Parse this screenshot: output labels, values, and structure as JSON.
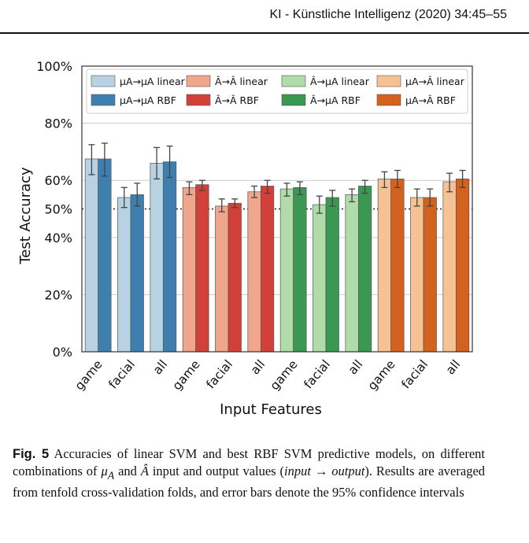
{
  "header": {
    "journal": "KI - Künstliche Intelligenz (2020) 34:45–55"
  },
  "caption": {
    "label": "Fig. 5",
    "part1": "Accuracies of linear SVM and best RBF SVM predictive models, on different combinations of",
    "sym_mu": "μ",
    "sym_mu_sub": "A",
    "part2": "and",
    "sym_a": "Â",
    "part3": "input and output values (",
    "input_word": "input",
    "arrow": "→",
    "output_word": "output",
    "part4": "). Results are averaged from tenfold cross-validation folds, and error bars denote the 95% confidence intervals"
  },
  "chart_data": {
    "type": "bar",
    "xlabel": "Input Features",
    "ylabel": "Test Accuracy",
    "ylim": [
      0,
      100
    ],
    "yticks": [
      0,
      20,
      40,
      50,
      60,
      80,
      100
    ],
    "ytick_labels": [
      "0%",
      "20%",
      "40%",
      "50%",
      "60%",
      "80%",
      "100%"
    ],
    "categories": [
      "game",
      "facial",
      "all",
      "game",
      "facial",
      "all",
      "game",
      "facial",
      "all",
      "game",
      "facial",
      "all"
    ],
    "reference_line": 50,
    "legend_position": "top",
    "groups": [
      {
        "series": [
          {
            "name": "μA→μA linear",
            "color": "#b6d2e3",
            "values": [
              67.5,
              54.0,
              66.0
            ],
            "err_low": [
              62.0,
              50.5,
              60.5
            ],
            "err_high": [
              72.5,
              57.5,
              71.5
            ]
          },
          {
            "name": "μA→μA RBF",
            "color": "#3f7fb0",
            "values": [
              67.5,
              55.0,
              66.5
            ],
            "err_low": [
              61.5,
              51.0,
              61.0
            ],
            "err_high": [
              73.0,
              59.0,
              72.0
            ]
          }
        ]
      },
      {
        "series": [
          {
            "name": "Â→Â linear",
            "color": "#f0a58d",
            "values": [
              57.5,
              51.0,
              56.0
            ],
            "err_low": [
              55.0,
              49.0,
              54.0
            ],
            "err_high": [
              59.5,
              53.5,
              58.0
            ]
          },
          {
            "name": "Â→Â RBF",
            "color": "#d2403a",
            "values": [
              58.5,
              52.0,
              58.0
            ],
            "err_low": [
              56.5,
              50.5,
              55.5
            ],
            "err_high": [
              60.0,
              53.5,
              60.0
            ]
          }
        ]
      },
      {
        "series": [
          {
            "name": "Â→μA linear",
            "color": "#b0dca9",
            "values": [
              57.0,
              51.5,
              55.0
            ],
            "err_low": [
              54.5,
              48.5,
              52.5
            ],
            "err_high": [
              59.0,
              54.5,
              57.0
            ]
          },
          {
            "name": "Â→μA RBF",
            "color": "#3a9852",
            "values": [
              57.5,
              54.0,
              58.0
            ],
            "err_low": [
              55.0,
              51.0,
              55.5
            ],
            "err_high": [
              59.5,
              56.5,
              60.0
            ]
          }
        ]
      },
      {
        "series": [
          {
            "name": "μA→Â linear",
            "color": "#f6c193",
            "values": [
              60.5,
              54.0,
              59.5
            ],
            "err_low": [
              57.5,
              51.0,
              56.0
            ],
            "err_high": [
              63.0,
              57.0,
              62.5
            ]
          },
          {
            "name": "μA→Â RBF",
            "color": "#d2621e",
            "values": [
              60.5,
              54.0,
              60.5
            ],
            "err_low": [
              57.5,
              51.0,
              57.5
            ],
            "err_high": [
              63.5,
              57.0,
              63.5
            ]
          }
        ]
      }
    ],
    "colors": {
      "axis": "#333333",
      "grid": "#cccccc",
      "refline": "#222222",
      "errbar": "#444444",
      "legend_border": "#cccccc",
      "bar_edge": "#555555"
    }
  }
}
